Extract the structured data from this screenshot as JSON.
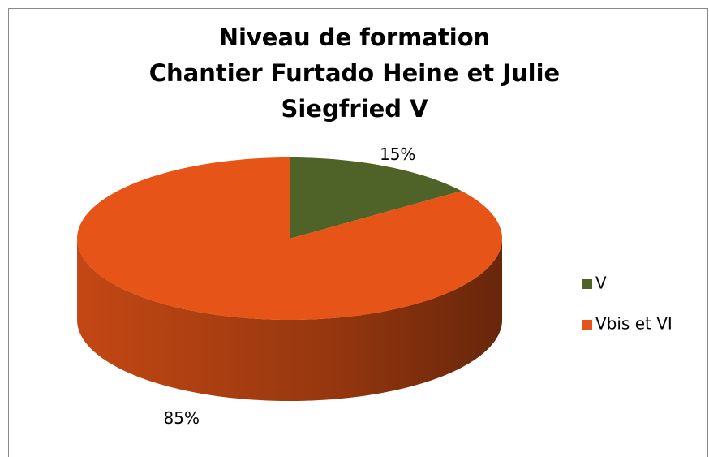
{
  "chart_data": {
    "type": "pie3d",
    "title": [
      "Niveau de formation",
      "Chantier Furtado Heine et Julie",
      "Siegfried V"
    ],
    "categories": [
      "V",
      "Vbis et VI"
    ],
    "values": [
      15,
      85
    ],
    "value_labels": [
      "15%",
      "85%"
    ],
    "colors": [
      "#4f6228",
      "#e65417"
    ],
    "legend": "right"
  }
}
